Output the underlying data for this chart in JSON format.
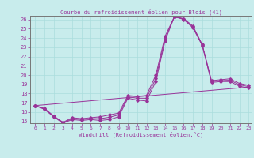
{
  "title": "Courbe du refroidissement éolien pour Blois (41)",
  "xlabel": "Windchill (Refroidissement éolien,°C)",
  "bg_color": "#c8ecec",
  "line_color": "#993399",
  "grid_color": "#aadddd",
  "xlim": [
    -0.5,
    23.3
  ],
  "ylim": [
    14.8,
    26.4
  ],
  "yticks": [
    15,
    16,
    17,
    18,
    19,
    20,
    21,
    22,
    23,
    24,
    25,
    26
  ],
  "xticks": [
    0,
    1,
    2,
    3,
    4,
    5,
    6,
    7,
    8,
    9,
    10,
    11,
    12,
    13,
    14,
    15,
    16,
    17,
    18,
    19,
    20,
    21,
    22,
    23
  ],
  "series_main": {
    "x": [
      0,
      1,
      2,
      3,
      4,
      5,
      6,
      7,
      8,
      9,
      10,
      11,
      12,
      13,
      14,
      15,
      16,
      17,
      18,
      19,
      20,
      21,
      22,
      23
    ],
    "y": [
      16.7,
      16.3,
      15.5,
      14.8,
      15.2,
      15.1,
      15.2,
      15.1,
      15.2,
      15.5,
      17.5,
      17.3,
      17.2,
      19.3,
      23.7,
      26.3,
      26.0,
      25.1,
      23.2,
      19.2,
      19.3,
      19.3,
      18.8,
      18.6
    ]
  },
  "series_upper": {
    "x": [
      0,
      1,
      2,
      3,
      4,
      5,
      6,
      7,
      8,
      9,
      10,
      11,
      12,
      13,
      14,
      15,
      16,
      17,
      18,
      19,
      20,
      21,
      22,
      23
    ],
    "y": [
      16.7,
      16.4,
      15.6,
      14.9,
      15.4,
      15.3,
      15.4,
      15.5,
      15.7,
      15.9,
      17.8,
      17.7,
      17.8,
      20.0,
      24.2,
      26.3,
      26.1,
      25.3,
      23.3,
      19.4,
      19.5,
      19.6,
      19.1,
      18.9
    ]
  },
  "series_mid": {
    "x": [
      0,
      1,
      2,
      3,
      4,
      5,
      6,
      7,
      8,
      9,
      10,
      11,
      12,
      13,
      14,
      15,
      16,
      17,
      18,
      19,
      20,
      21,
      22,
      23
    ],
    "y": [
      16.7,
      16.35,
      15.55,
      14.85,
      15.3,
      15.2,
      15.3,
      15.3,
      15.45,
      15.7,
      17.65,
      17.5,
      17.5,
      19.65,
      23.95,
      26.3,
      26.05,
      25.2,
      23.25,
      19.3,
      19.4,
      19.45,
      18.95,
      18.75
    ]
  },
  "series_diag": {
    "x": [
      0,
      23
    ],
    "y": [
      16.7,
      18.7
    ]
  }
}
